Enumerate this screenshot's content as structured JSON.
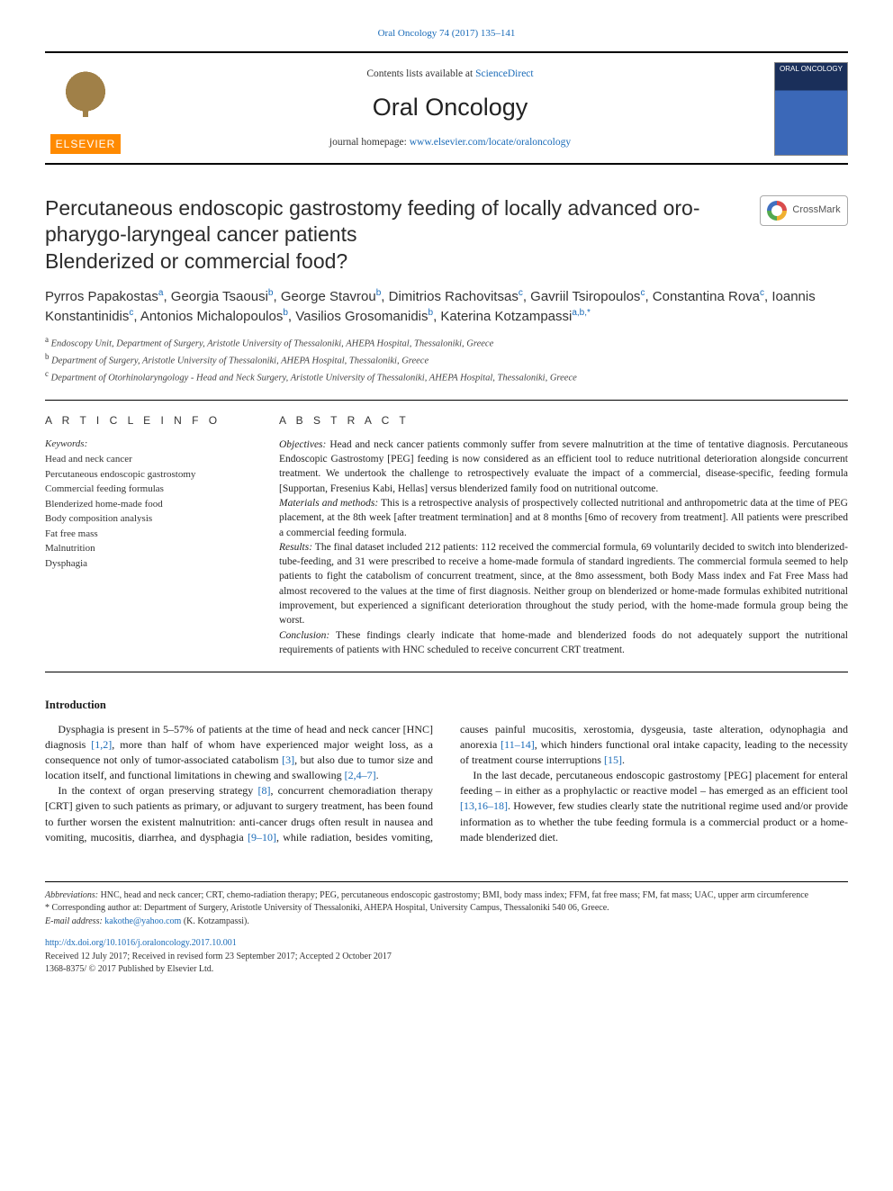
{
  "header": {
    "topLink": "Oral Oncology 74 (2017) 135–141",
    "contentsLine_pre": "Contents lists available at ",
    "contentsLine_link": "ScienceDirect",
    "journalName": "Oral Oncology",
    "homepage_pre": "journal homepage: ",
    "homepage_link": "www.elsevier.com/locate/oraloncology",
    "elsevierWord": "ELSEVIER",
    "coverTitle": "ORAL ONCOLOGY"
  },
  "crossmark": {
    "label": "CrossMark"
  },
  "article": {
    "title": "Percutaneous endoscopic gastrostomy feeding of locally advanced oro-pharygo-laryngeal cancer patients",
    "subtitle": "Blenderized or commercial food?",
    "authorsHtml": "Pyrros Papakostas<sup>a</sup>, Georgia Tsaousi<sup>b</sup>, George Stavrou<sup>b</sup>, Dimitrios Rachovitsas<sup>c</sup>, Gavriil Tsiropoulos<sup>c</sup>, Constantina Rova<sup>c</sup>, Ioannis Konstantinidis<sup>c</sup>, Antonios Michalopoulos<sup>b</sup>, Vasilios Grosomanidis<sup>b</sup>, Katerina Kotzampassi<sup>a,b,*</sup>",
    "affiliations": [
      {
        "sup": "a",
        "text": "Endoscopy Unit, Department of Surgery, Aristotle University of Thessaloniki, AHEPA Hospital, Thessaloniki, Greece"
      },
      {
        "sup": "b",
        "text": "Department of Surgery, Aristotle University of Thessaloniki, AHEPA Hospital, Thessaloniki, Greece"
      },
      {
        "sup": "c",
        "text": "Department of Otorhinolaryngology - Head and Neck Surgery, Aristotle University of Thessaloniki, AHEPA Hospital, Thessaloniki, Greece"
      }
    ]
  },
  "info": {
    "heading": "A R T I C L E   I N F O",
    "kwLabel": "Keywords:",
    "keywords": [
      "Head and neck cancer",
      "Percutaneous endoscopic gastrostomy",
      "Commercial feeding formulas",
      "Blenderized home-made food",
      "Body composition analysis",
      "Fat free mass",
      "Malnutrition",
      "Dysphagia"
    ]
  },
  "abstract": {
    "heading": "A B S T R A C T",
    "segments": [
      {
        "lead": "Objectives:",
        "text": " Head and neck cancer patients commonly suffer from severe malnutrition at the time of tentative diagnosis. Percutaneous Endoscopic Gastrostomy [PEG] feeding is now considered as an efficient tool to reduce nutritional deterioration alongside concurrent treatment. We undertook the challenge to retrospectively evaluate the impact of a commercial, disease-specific, feeding formula [Supportan, Fresenius Kabi, Hellas] versus blenderized family food on nutritional outcome."
      },
      {
        "lead": "Materials and methods:",
        "text": " This is a retrospective analysis of prospectively collected nutritional and anthropometric data at the time of PEG placement, at the 8th week [after treatment termination] and at 8 months [6mo of recovery from treatment]. All patients were prescribed a commercial feeding formula."
      },
      {
        "lead": "Results:",
        "text": " The final dataset included 212 patients: 112 received the commercial formula, 69 voluntarily decided to switch into blenderized-tube-feeding, and 31 were prescribed to receive a home-made formula of standard ingredients. The commercial formula seemed to help patients to fight the catabolism of concurrent treatment, since, at the 8mo assessment, both Body Mass index and Fat Free Mass had almost recovered to the values at the time of first diagnosis. Neither group on blenderized or home-made formulas exhibited nutritional improvement, but experienced a significant deterioration throughout the study period, with the home-made formula group being the worst."
      },
      {
        "lead": "Conclusion:",
        "text": " These findings clearly indicate that home-made and blenderized foods do not adequately support the nutritional requirements of patients with HNC scheduled to receive concurrent CRT treatment."
      }
    ]
  },
  "body": {
    "heading": "Introduction",
    "paragraphs": [
      "Dysphagia is present in 5–57% of patients at the time of head and neck cancer [HNC] diagnosis <a>[1,2]</a>, more than half of whom have experienced major weight loss, as a consequence not only of tumor-associated catabolism <a>[3]</a>, but also due to tumor size and location itself, and functional limitations in chewing and swallowing <a>[2,4–7]</a>.",
      "In the context of organ preserving strategy <a>[8]</a>, concurrent chemoradiation therapy [CRT] given to such patients as primary, or adjuvant to surgery treatment, has been found to further worsen the existent malnutrition: anti-cancer drugs often result in nausea and vomiting, mucositis, diarrhea, and dysphagia <a>[9–10]</a>, while radiation, besides vomiting, causes painful mucositis, xerostomia, dysgeusia, taste alteration, odynophagia and anorexia <a>[11–14]</a>, which hinders functional oral intake capacity, leading to the necessity of treatment course interruptions <a>[15]</a>.",
      "In the last decade, percutaneous endoscopic gastrostomy [PEG] placement for enteral feeding – in either as a prophylactic or reactive model – has emerged as an efficient tool <a>[13,16–18]</a>. However, few studies clearly state the nutritional regime used and/or provide information as to whether the tube feeding formula is a commercial product or a home-made blenderized diet."
    ]
  },
  "footnotes": {
    "abbrev_label": "Abbreviations:",
    "abbrev_text": " HNC, head and neck cancer; CRT, chemo-radiation therapy; PEG, percutaneous endoscopic gastrostomy; BMI, body mass index; FFM, fat free mass; FM, fat mass; UAC, upper arm circumference",
    "corresponding": "* Corresponding author at: Department of Surgery, Aristotle University of Thessaloniki, AHEPA Hospital, University Campus, Thessaloniki 540 06, Greece.",
    "email_label": "E-mail address: ",
    "email": "kakothe@yahoo.com",
    "email_suffix": " (K. Kotzampassi).",
    "doi": "http://dx.doi.org/10.1016/j.oraloncology.2017.10.001",
    "received": "Received 12 July 2017; Received in revised form 23 September 2017; Accepted 2 October 2017",
    "copyright": "1368-8375/ © 2017 Published by Elsevier Ltd."
  },
  "colors": {
    "link": "#1a6bb8",
    "text": "#1a1a1a",
    "elsevierOrange": "#ff8a00"
  }
}
